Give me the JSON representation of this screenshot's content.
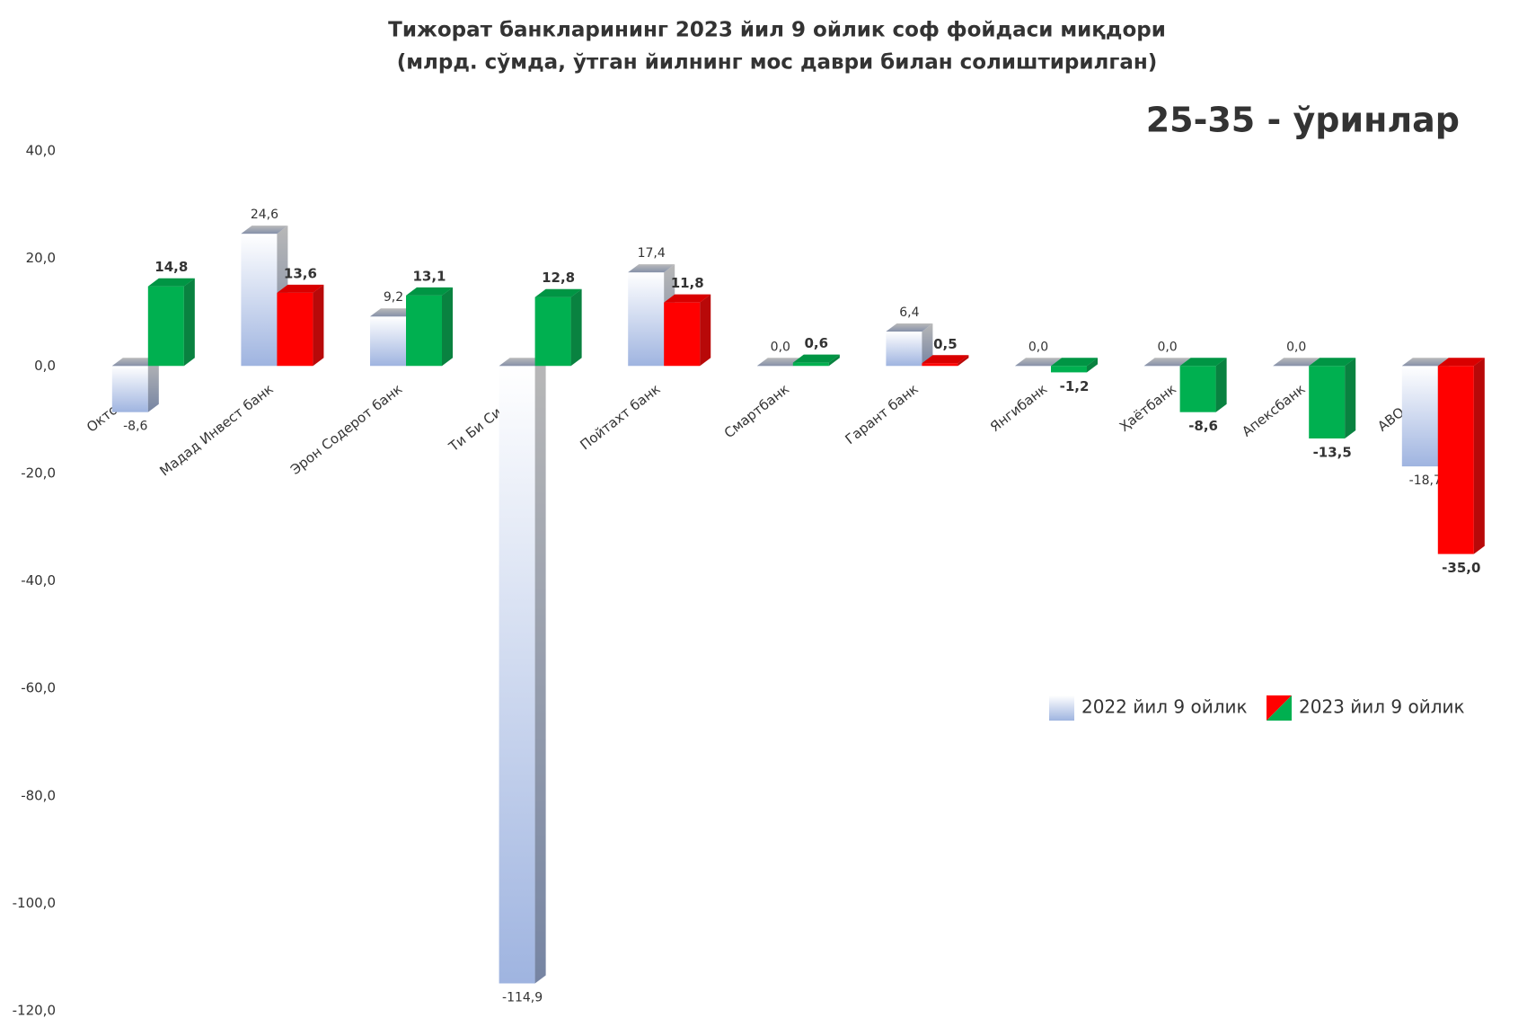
{
  "chart_data": {
    "type": "bar3d",
    "title": "Тижорат банкларининг 2023 йил 9 ойлик соф фойдаси миқдори",
    "subtitle": "(млрд. сўмда, ўтган йилнинг мос даври билан солиштирилган)",
    "annotation": "25-35 - ўринлар",
    "categories": [
      "Октобанк",
      "Мадад Инвест банк",
      "Эрон Содерот банк",
      "Ти Би Си банк",
      "Пойтахт банк",
      "Смартбанк",
      "Гарант банк",
      "Янгибанк",
      "Ҳаётбанк",
      "Апексбанк",
      "АВО банк"
    ],
    "series": [
      {
        "name": "2022 йил 9 ойлик",
        "color": "#b4c7e7",
        "values": [
          -8.6,
          24.6,
          9.2,
          -114.9,
          17.4,
          0.0,
          6.4,
          0.0,
          0.0,
          0.0,
          -18.7
        ],
        "value_labels": [
          "-8,6",
          "24,6",
          "9,2",
          "-114,9",
          "17,4",
          "0,0",
          "6,4",
          "0,0",
          "0,0",
          "0,0",
          "-18,7"
        ]
      },
      {
        "name": "2023 йил 9 ойлик",
        "colors": [
          "#00b050",
          "#ff0000",
          "#00b050",
          "#00b050",
          "#ff0000",
          "#00b050",
          "#ff0000",
          "#00b050",
          "#00b050",
          "#00b050",
          "#ff0000"
        ],
        "values": [
          14.8,
          13.6,
          13.1,
          12.8,
          11.8,
          0.6,
          0.5,
          -1.2,
          -8.6,
          -13.5,
          -35.0
        ],
        "value_labels": [
          "14,8",
          "13,6",
          "13,1",
          "12,8",
          "11,8",
          "0,6",
          "0,5",
          "-1,2",
          "-8,6",
          "-13,5",
          "-35,0"
        ]
      }
    ],
    "ylim": [
      -120,
      40
    ],
    "yticks": [
      {
        "value": -120,
        "label": "-120,0"
      },
      {
        "value": -100,
        "label": "-100,0"
      },
      {
        "value": -80,
        "label": "-80,0"
      },
      {
        "value": -60,
        "label": "-60,0"
      },
      {
        "value": -40,
        "label": "-40,0"
      },
      {
        "value": -20,
        "label": "-20,0"
      },
      {
        "value": 0,
        "label": "0,0"
      },
      {
        "value": 20,
        "label": "20,0"
      },
      {
        "value": 40,
        "label": "40,0"
      }
    ],
    "grid": false,
    "legend": "lower-right"
  }
}
